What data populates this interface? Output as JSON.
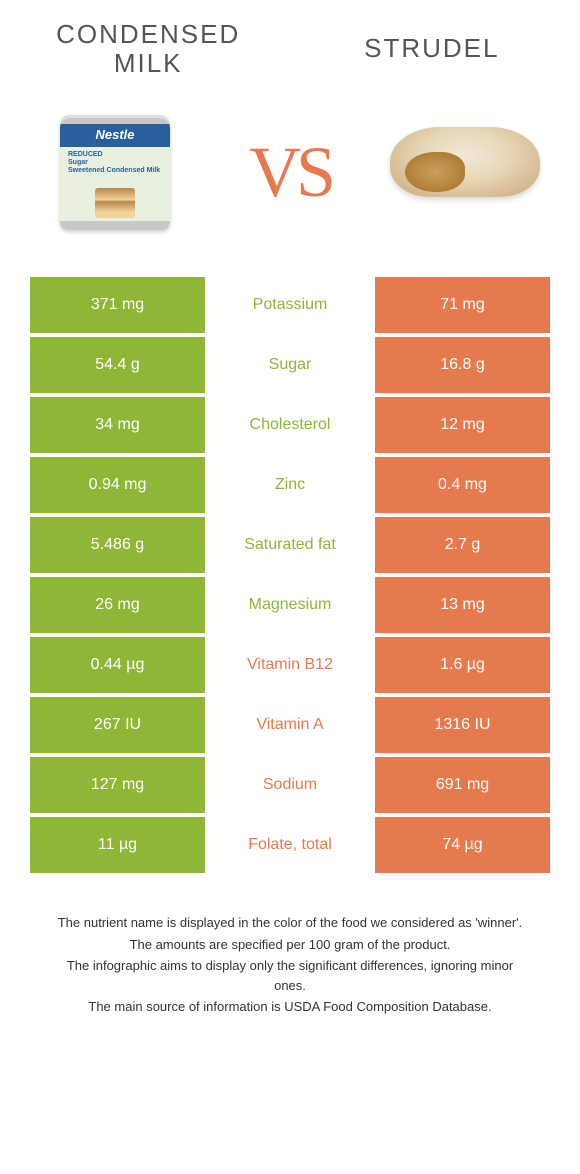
{
  "colors": {
    "green": "#8fb636",
    "orange": "#e67a4f",
    "text_gray": "#555555",
    "footer_text": "#333333"
  },
  "titles": {
    "left": "CONDENSED\nMILK",
    "right": "STRUDEL"
  },
  "vs": "VS",
  "rows": [
    {
      "left": "371 mg",
      "label": "Potassium",
      "right": "71 mg",
      "winner": "left"
    },
    {
      "left": "54.4 g",
      "label": "Sugar",
      "right": "16.8 g",
      "winner": "left"
    },
    {
      "left": "34 mg",
      "label": "Cholesterol",
      "right": "12 mg",
      "winner": "left"
    },
    {
      "left": "0.94 mg",
      "label": "Zinc",
      "right": "0.4 mg",
      "winner": "left"
    },
    {
      "left": "5.486 g",
      "label": "Saturated fat",
      "right": "2.7 g",
      "winner": "left"
    },
    {
      "left": "26 mg",
      "label": "Magnesium",
      "right": "13 mg",
      "winner": "left"
    },
    {
      "left": "0.44 µg",
      "label": "Vitamin B12",
      "right": "1.6 µg",
      "winner": "right"
    },
    {
      "left": "267 IU",
      "label": "Vitamin A",
      "right": "1316 IU",
      "winner": "right"
    },
    {
      "left": "127 mg",
      "label": "Sodium",
      "right": "691 mg",
      "winner": "right"
    },
    {
      "left": "11 µg",
      "label": "Folate, total",
      "right": "74 µg",
      "winner": "right"
    }
  ],
  "footer": [
    "The nutrient name is displayed in the color of the food we considered as 'winner'.",
    "The amounts are specified per 100 gram of the product.",
    "The infographic aims to display only the significant differences, ignoring minor ones.",
    "The main source of information is USDA Food Composition Database."
  ]
}
